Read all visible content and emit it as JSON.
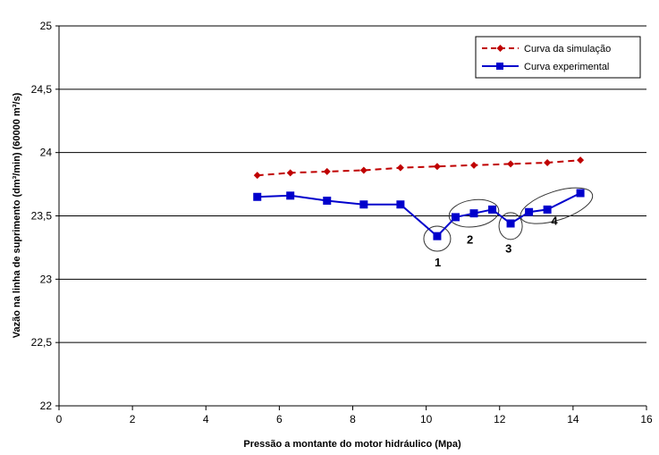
{
  "chart_data": {
    "type": "line",
    "title": "",
    "xlabel": "Pressão a montante do motor hidráulico (Mpa)",
    "ylabel": "Vazão na linha de suprimento (dm³/min) (60000 m³/s)",
    "xlim": [
      0,
      16
    ],
    "ylim": [
      22,
      25
    ],
    "x_ticks": [
      "0",
      "2",
      "4",
      "6",
      "8",
      "10",
      "12",
      "14",
      "16"
    ],
    "y_ticks": [
      "22",
      "22,5",
      "23",
      "23,5",
      "24",
      "24,5",
      "25"
    ],
    "grid": "horizontal",
    "legend_position": "top-right",
    "series": [
      {
        "name": "Curva da simulação",
        "color": "#c00000",
        "marker": "diamond",
        "line_style": "dashed",
        "x": [
          5.4,
          6.3,
          7.3,
          8.3,
          9.3,
          10.3,
          11.3,
          12.3,
          13.3,
          14.2
        ],
        "y": [
          23.82,
          23.84,
          23.85,
          23.86,
          23.88,
          23.89,
          23.9,
          23.91,
          23.92,
          23.94
        ]
      },
      {
        "name": "Curva experimental",
        "color": "#0000cc",
        "marker": "square",
        "line_style": "solid",
        "x": [
          5.4,
          6.3,
          7.3,
          8.3,
          9.3,
          10.3,
          10.8,
          11.3,
          11.8,
          12.3,
          12.8,
          13.3,
          14.2
        ],
        "y": [
          23.65,
          23.66,
          23.62,
          23.59,
          23.59,
          23.34,
          23.49,
          23.52,
          23.55,
          23.44,
          23.53,
          23.55,
          23.68
        ]
      }
    ],
    "annotations": [
      {
        "label": "1",
        "x": 10.3,
        "y": 23.34
      },
      {
        "label": "2",
        "x": 11.3,
        "y": 23.52
      },
      {
        "label": "3",
        "x": 12.3,
        "y": 23.44
      },
      {
        "label": "4",
        "x": 13.5,
        "y": 23.58
      }
    ]
  }
}
